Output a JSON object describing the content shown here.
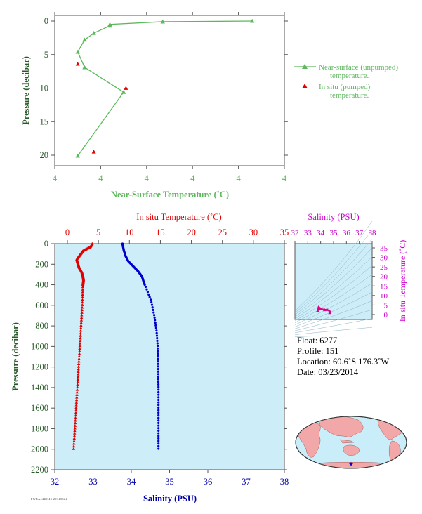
{
  "chart_data": [
    {
      "type": "line",
      "xlabel": "Near-Surface Temperature (˚C)",
      "ylabel": "Pressure (decibar)",
      "x_ticks": [
        "4",
        "4",
        "4",
        "4",
        "4",
        "4"
      ],
      "y_ticks": [
        0,
        5,
        10,
        15,
        20
      ],
      "ylim": [
        0,
        22
      ],
      "y_inverted": true,
      "legend_position": "right",
      "series": [
        {
          "name": "Near-surface (unpumped) temperature.",
          "color": "#5cb85c",
          "marker": "triangle",
          "x_rel": [
            0.86,
            0.47,
            0.24,
            0.24,
            0.17,
            0.13,
            0.1,
            0.13,
            0.3,
            0.1
          ],
          "y": [
            0.0,
            0.1,
            0.5,
            0.7,
            1.8,
            2.8,
            4.6,
            6.9,
            10.6,
            20.1
          ]
        },
        {
          "name": "In situ (pumped) temperature.",
          "color": "#e00000",
          "marker": "triangle",
          "x_rel": [
            0.1,
            0.31,
            0.17
          ],
          "y": [
            6.4,
            10.0,
            19.5
          ]
        }
      ]
    },
    {
      "type": "scatter",
      "title": "In situ Temperature (˚C)",
      "xlabel": "Salinity (PSU)",
      "ylabel": "Pressure (decibar)",
      "temp_ticks": [
        0,
        5,
        10,
        15,
        20,
        25,
        30,
        35
      ],
      "sal_ticks": [
        32,
        33,
        34,
        35,
        36,
        37,
        38
      ],
      "y_ticks": [
        0,
        200,
        400,
        600,
        800,
        1000,
        1200,
        1400,
        1600,
        1800,
        2000,
        2200
      ],
      "temp_lim": [
        -2,
        35
      ],
      "sal_lim": [
        32,
        38
      ],
      "ylim": [
        0,
        2200
      ],
      "y_inverted": true,
      "series": [
        {
          "name": "temperature",
          "color": "#e00000",
          "marker": "triangle",
          "profile": [
            [
              4.0,
              0
            ],
            [
              3.7,
              30
            ],
            [
              2.5,
              70
            ],
            [
              2.0,
              110
            ],
            [
              1.5,
              150
            ],
            [
              1.7,
              190
            ],
            [
              1.9,
              230
            ],
            [
              2.3,
              270
            ],
            [
              2.5,
              310
            ],
            [
              2.6,
              350
            ],
            [
              2.5,
              400
            ],
            [
              2.4,
              600
            ],
            [
              2.2,
              800
            ],
            [
              2.0,
              1000
            ],
            [
              1.8,
              1200
            ],
            [
              1.6,
              1400
            ],
            [
              1.4,
              1600
            ],
            [
              1.2,
              1800
            ],
            [
              1.0,
              2000
            ]
          ]
        },
        {
          "name": "salinity",
          "color": "#0000cc",
          "marker": "dot",
          "profile": [
            [
              33.77,
              0
            ],
            [
              33.8,
              60
            ],
            [
              33.85,
              120
            ],
            [
              33.92,
              170
            ],
            [
              34.05,
              220
            ],
            [
              34.18,
              270
            ],
            [
              34.28,
              320
            ],
            [
              34.33,
              380
            ],
            [
              34.42,
              460
            ],
            [
              34.52,
              560
            ],
            [
              34.6,
              700
            ],
            [
              34.66,
              850
            ],
            [
              34.69,
              1000
            ],
            [
              34.7,
              1200
            ],
            [
              34.71,
              1400
            ],
            [
              34.71,
              1600
            ],
            [
              34.71,
              1800
            ],
            [
              34.71,
              2000
            ]
          ]
        }
      ]
    },
    {
      "type": "scatter",
      "title": "Salinity (PSU)",
      "ylabel": "In situ Temperature (˚C)",
      "sal_ticks": [
        32,
        33,
        34,
        35,
        36,
        37,
        38
      ],
      "temp_ticks": [
        0,
        5,
        10,
        15,
        20,
        25,
        30,
        35
      ],
      "sal_lim": [
        32,
        38
      ],
      "temp_lim": [
        -2,
        35
      ],
      "series": [
        {
          "name": "T-S",
          "color": "#e0008a",
          "points": [
            [
              33.77,
              2.0
            ],
            [
              33.85,
              4.0
            ],
            [
              34.0,
              3.0
            ],
            [
              34.3,
              2.5
            ],
            [
              34.5,
              2.6
            ],
            [
              34.7,
              1.8
            ],
            [
              34.71,
              1.0
            ]
          ]
        }
      ]
    }
  ],
  "info": {
    "float": "Float:  6277",
    "profile": "Profile:  151",
    "location": "Location:  60.6˚S  176.3˚W",
    "date": "Date:  03/23/2014"
  },
  "map": {
    "ocean_color": "#c9eef9",
    "land_color": "#f2a8a8",
    "marker_color": "#0000cc"
  },
  "footer_code": "PWRA44UO4S 20140324"
}
